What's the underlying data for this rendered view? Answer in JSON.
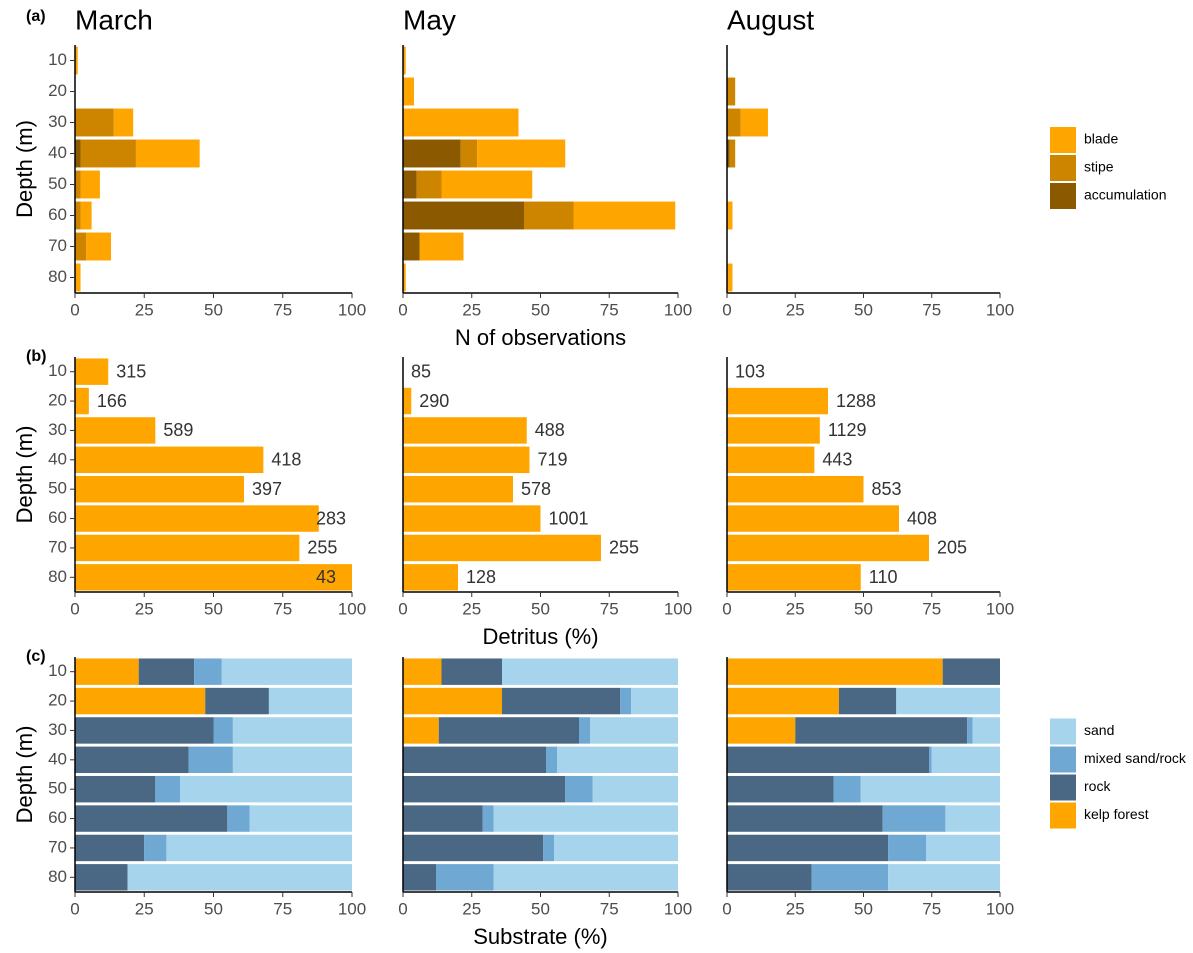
{
  "chart_data": [
    {
      "type": "stacked-bar",
      "panel_label": "(a)",
      "ylabel": "Depth (m)",
      "xlabel": "N of observations",
      "categories": [
        "10",
        "20",
        "30",
        "40",
        "50",
        "60",
        "70",
        "80"
      ],
      "xlim": [
        0,
        100
      ],
      "xticks": [
        0,
        25,
        50,
        75,
        100
      ],
      "legend": "right",
      "series": [
        {
          "name": "blade",
          "color": "#FFA500"
        },
        {
          "name": "stipe",
          "color": "#CD8500"
        },
        {
          "name": "accumulation",
          "color": "#8B5A00"
        }
      ],
      "facets": [
        {
          "title": "March",
          "values": [
            [
              1,
              0,
              7,
              23,
              7,
              4,
              9,
              2
            ],
            [
              0,
              0,
              14,
              20,
              2,
              2,
              4,
              0
            ],
            [
              0,
              0,
              0,
              2,
              0,
              0,
              0,
              0
            ]
          ]
        },
        {
          "title": "May",
          "values": [
            [
              1,
              4,
              42,
              32,
              33,
              37,
              16,
              1
            ],
            [
              0,
              0,
              0,
              6,
              9,
              18,
              0,
              0
            ],
            [
              0,
              0,
              0,
              21,
              5,
              44,
              6,
              0
            ]
          ]
        },
        {
          "title": "August",
          "values": [
            [
              0,
              0,
              10,
              0,
              0,
              2,
              0,
              2
            ],
            [
              0,
              3,
              5,
              2,
              0,
              0,
              0,
              0
            ],
            [
              0,
              0,
              0,
              1,
              0,
              0,
              0,
              0
            ]
          ]
        }
      ]
    },
    {
      "type": "bar",
      "panel_label": "(b)",
      "ylabel": "Depth (m)",
      "xlabel": "Detritus (%)",
      "categories": [
        "10",
        "20",
        "30",
        "40",
        "50",
        "60",
        "70",
        "80"
      ],
      "xlim": [
        0,
        100
      ],
      "xticks": [
        0,
        25,
        50,
        75,
        100
      ],
      "color": "#FFA500",
      "facets": [
        {
          "values": [
            12,
            5,
            29,
            68,
            61,
            88,
            81,
            100
          ],
          "counts": [
            315,
            166,
            589,
            418,
            397,
            283,
            255,
            43
          ]
        },
        {
          "values": [
            0,
            3,
            45,
            46,
            40,
            50,
            72,
            20
          ],
          "counts": [
            85,
            290,
            488,
            719,
            578,
            1001,
            255,
            128
          ]
        },
        {
          "values": [
            0,
            37,
            34,
            32,
            50,
            63,
            74,
            49
          ],
          "counts": [
            103,
            1288,
            1129,
            443,
            853,
            408,
            205,
            110
          ]
        }
      ]
    },
    {
      "type": "stacked-bar",
      "panel_label": "(c)",
      "ylabel": "Depth (m)",
      "xlabel": "Substrate (%)",
      "categories": [
        "10",
        "20",
        "30",
        "40",
        "50",
        "60",
        "70",
        "80"
      ],
      "xlim": [
        0,
        100
      ],
      "xticks": [
        0,
        25,
        50,
        75,
        100
      ],
      "legend": "right",
      "series": [
        {
          "name": "sand",
          "color": "#A6D4EC"
        },
        {
          "name": "mixed sand/rock",
          "color": "#6FA8D2"
        },
        {
          "name": "rock",
          "color": "#4A6884"
        },
        {
          "name": "kelp forest",
          "color": "#FFA500"
        }
      ],
      "facets": [
        {
          "values": [
            [
              47,
              30,
              43,
              43,
              62,
              37,
              67,
              81
            ],
            [
              10,
              0,
              7,
              16,
              9,
              8,
              8,
              0
            ],
            [
              20,
              23,
              50,
              41,
              29,
              55,
              25,
              19
            ],
            [
              23,
              47,
              0,
              0,
              0,
              0,
              0,
              0
            ]
          ]
        },
        {
          "values": [
            [
              64,
              17,
              32,
              44,
              31,
              67,
              45,
              67
            ],
            [
              0,
              4,
              4,
              4,
              10,
              4,
              4,
              21
            ],
            [
              22,
              43,
              51,
              52,
              59,
              29,
              51,
              12
            ],
            [
              14,
              36,
              13,
              0,
              0,
              0,
              0,
              0
            ]
          ]
        },
        {
          "values": [
            [
              0,
              38,
              10,
              25,
              51,
              20,
              27,
              41
            ],
            [
              0,
              0,
              2,
              1,
              10,
              23,
              14,
              28
            ],
            [
              21,
              21,
              63,
              74,
              39,
              57,
              59,
              31
            ],
            [
              79,
              41,
              25,
              0,
              0,
              0,
              0,
              0
            ]
          ]
        }
      ]
    }
  ]
}
